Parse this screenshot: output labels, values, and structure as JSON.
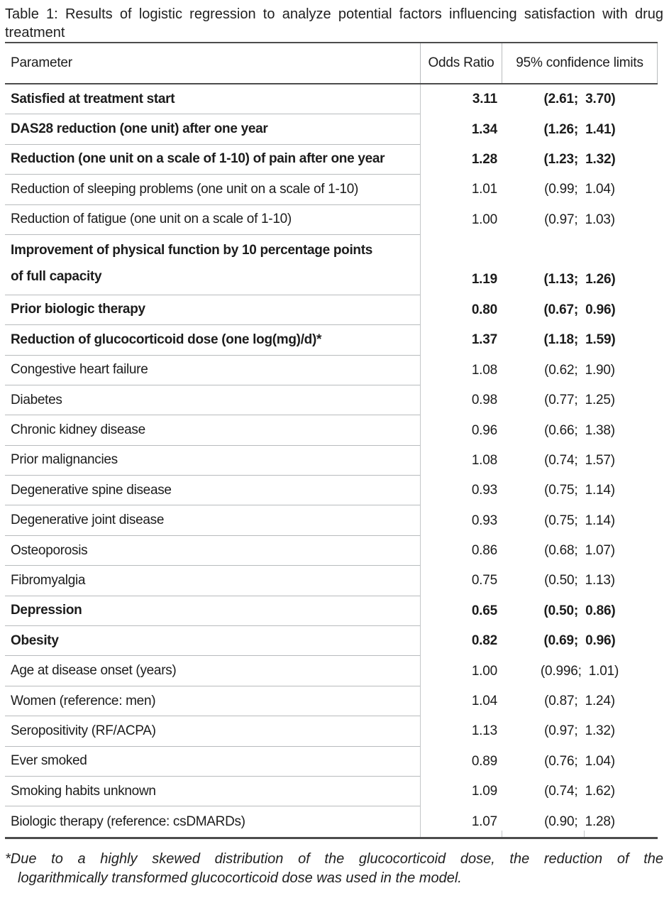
{
  "title": {
    "line1": "Table 1: Results of logistic regression to analyze potential factors influencing satisfaction with drug",
    "line2": "treatment"
  },
  "table": {
    "columns": {
      "parameter": "Parameter",
      "odds_ratio": "Odds Ratio",
      "ci": "95% confidence limits"
    },
    "rows": [
      {
        "parameter": "Satisfied at treatment start",
        "odds_ratio": "3.11",
        "ci": "(2.61;  3.70)",
        "bold": true
      },
      {
        "parameter": "DAS28 reduction (one unit) after one year",
        "odds_ratio": "1.34",
        "ci": "(1.26;  1.41)",
        "bold": true
      },
      {
        "parameter": "Reduction (one unit on a scale of 1-10) of pain after one year",
        "odds_ratio": "1.28",
        "ci": "(1.23;  1.32)",
        "bold": true
      },
      {
        "parameter": "Reduction of sleeping problems (one unit on a scale of 1-10)",
        "odds_ratio": "1.01",
        "ci": "(0.99;  1.04)",
        "bold": false
      },
      {
        "parameter": "Reduction of fatigue (one unit on a scale of 1-10)",
        "odds_ratio": "1.00",
        "ci": "(0.97;  1.03)",
        "bold": false
      },
      {
        "parameter_lines": [
          "Improvement of physical function by 10 percentage points",
          "of full capacity"
        ],
        "odds_ratio": "1.19",
        "ci": "(1.13;  1.26)",
        "bold": true
      },
      {
        "parameter": "Prior biologic therapy",
        "odds_ratio": "0.80",
        "ci": "(0.67;  0.96)",
        "bold": true
      },
      {
        "parameter": "Reduction of glucocorticoid dose (one log(mg)/d)*",
        "odds_ratio": "1.37",
        "ci": "(1.18;  1.59)",
        "bold": true
      },
      {
        "parameter": "Congestive heart failure",
        "odds_ratio": "1.08",
        "ci": "(0.62;  1.90)",
        "bold": false
      },
      {
        "parameter": "Diabetes",
        "odds_ratio": "0.98",
        "ci": "(0.77;  1.25)",
        "bold": false
      },
      {
        "parameter": "Chronic kidney disease",
        "odds_ratio": "0.96",
        "ci": "(0.66;  1.38)",
        "bold": false
      },
      {
        "parameter": "Prior malignancies",
        "odds_ratio": "1.08",
        "ci": "(0.74;  1.57)",
        "bold": false
      },
      {
        "parameter": "Degenerative spine disease",
        "odds_ratio": "0.93",
        "ci": "(0.75;  1.14)",
        "bold": false
      },
      {
        "parameter": "Degenerative joint disease",
        "odds_ratio": "0.93",
        "ci": "(0.75;  1.14)",
        "bold": false
      },
      {
        "parameter": "Osteoporosis",
        "odds_ratio": "0.86",
        "ci": "(0.68;  1.07)",
        "bold": false
      },
      {
        "parameter": "Fibromyalgia",
        "odds_ratio": "0.75",
        "ci": "(0.50;  1.13)",
        "bold": false
      },
      {
        "parameter": "Depression",
        "odds_ratio": "0.65",
        "ci": "(0.50;  0.86)",
        "bold": true
      },
      {
        "parameter": "Obesity",
        "odds_ratio": "0.82",
        "ci": "(0.69;  0.96)",
        "bold": true
      },
      {
        "parameter": "Age at disease onset (years)",
        "odds_ratio": "1.00",
        "ci": "(0.996;  1.01)",
        "bold": false
      },
      {
        "parameter": "Women (reference: men)",
        "odds_ratio": "1.04",
        "ci": "(0.87;  1.24)",
        "bold": false
      },
      {
        "parameter": "Seropositivity (RF/ACPA)",
        "odds_ratio": "1.13",
        "ci": "(0.97;  1.32)",
        "bold": false
      },
      {
        "parameter": "Ever smoked",
        "odds_ratio": "0.89",
        "ci": "(0.76;  1.04)",
        "bold": false
      },
      {
        "parameter": "Smoking habits unknown",
        "odds_ratio": "1.09",
        "ci": "(0.74;  1.62)",
        "bold": false
      },
      {
        "parameter": "Biologic therapy (reference: csDMARDs)",
        "odds_ratio": "1.07",
        "ci": "(0.90;  1.28)",
        "bold": false
      }
    ]
  },
  "footnote": {
    "line1": "*Due to a highly skewed distribution of the glucocorticoid dose, the reduction of the",
    "line2": "logarithmically transformed glucocorticoid dose was used in the model."
  }
}
